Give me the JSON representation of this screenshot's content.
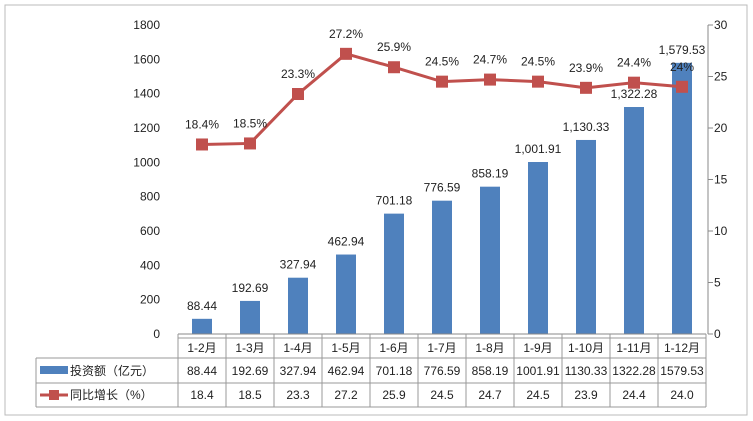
{
  "chart_data": {
    "type": "bar+line",
    "categories": [
      "1-2月",
      "1-3月",
      "1-4月",
      "1-5月",
      "1-6月",
      "1-7月",
      "1-8月",
      "1-9月",
      "1-10月",
      "1-11月",
      "1-12月"
    ],
    "series": [
      {
        "name": "投资额（亿元）",
        "type": "bar",
        "axis": "left",
        "color": "#4f81bd",
        "values": [
          88.44,
          192.69,
          327.94,
          462.94,
          701.18,
          776.59,
          858.19,
          1001.91,
          1130.33,
          1322.28,
          1579.53
        ],
        "labels": [
          "88.44",
          "192.69",
          "327.94",
          "462.94",
          "701.18",
          "776.59",
          "858.19",
          "1,001.91",
          "1,130.33",
          "1,322.28",
          "1,579.53"
        ],
        "table": [
          "88.44",
          "192.69",
          "327.94",
          "462.94",
          "701.18",
          "776.59",
          "858.19",
          "1001.91",
          "1130.33",
          "1322.28",
          "1579.53"
        ]
      },
      {
        "name": "同比增长（%）",
        "type": "line",
        "axis": "right",
        "color": "#c0504d",
        "values": [
          18.4,
          18.5,
          23.3,
          27.2,
          25.9,
          24.5,
          24.7,
          24.5,
          23.9,
          24.4,
          24.0
        ],
        "labels": [
          "18.4%",
          "18.5%",
          "23.3%",
          "27.2%",
          "25.9%",
          "24.5%",
          "24.7%",
          "24.5%",
          "23.9%",
          "24.4%",
          "24%"
        ],
        "table": [
          "18.4",
          "18.5",
          "23.3",
          "27.2",
          "25.9",
          "24.5",
          "24.7",
          "24.5",
          "23.9",
          "24.4",
          "24.0"
        ]
      }
    ],
    "ylim": [
      0,
      1800
    ],
    "yticks": [
      "0",
      "200",
      "400",
      "600",
      "800",
      "1000",
      "1200",
      "1400",
      "1600",
      "1800"
    ],
    "y2lim": [
      0,
      30
    ],
    "y2ticks": [
      "0",
      "5",
      "10",
      "15",
      "20",
      "25",
      "30"
    ],
    "grid": false,
    "legend": "data-table"
  }
}
